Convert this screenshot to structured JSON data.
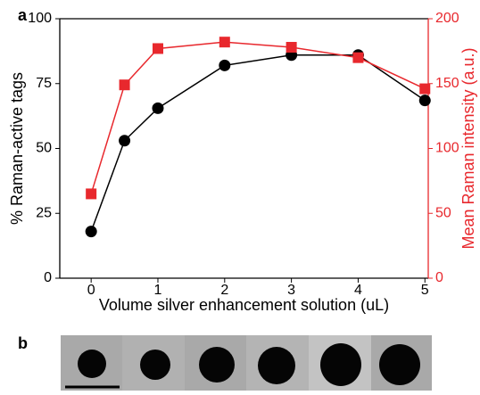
{
  "panel_labels": [
    "a",
    "b"
  ],
  "chart_data": {
    "type": "line",
    "xlabel": "Volume silver enhancement solution (uL)",
    "ylabel": "% Raman-active tags",
    "y2label": "Mean Raman intensity (a.u.)",
    "x": [
      0,
      0.5,
      1,
      2,
      3,
      4,
      5
    ],
    "series": [
      {
        "color": "#000000",
        "marker": "circle",
        "values": [
          18,
          53,
          65.5,
          82,
          86,
          86,
          68.5
        ]
      },
      {
        "color": "#e8282d",
        "marker": "square",
        "axis": "y2",
        "values": [
          65,
          149,
          177,
          182,
          178,
          170,
          146
        ]
      }
    ],
    "xlim": [
      -0.47,
      5.05
    ],
    "ylim": [
      0,
      100
    ],
    "y2lim": [
      0,
      200
    ],
    "xticks": [
      0,
      1,
      2,
      3,
      4,
      5
    ],
    "yticks": [
      0,
      25,
      50,
      75,
      100
    ],
    "y2ticks": [
      0,
      50,
      100,
      150,
      200
    ],
    "y2color": "#e8282d"
  }
}
